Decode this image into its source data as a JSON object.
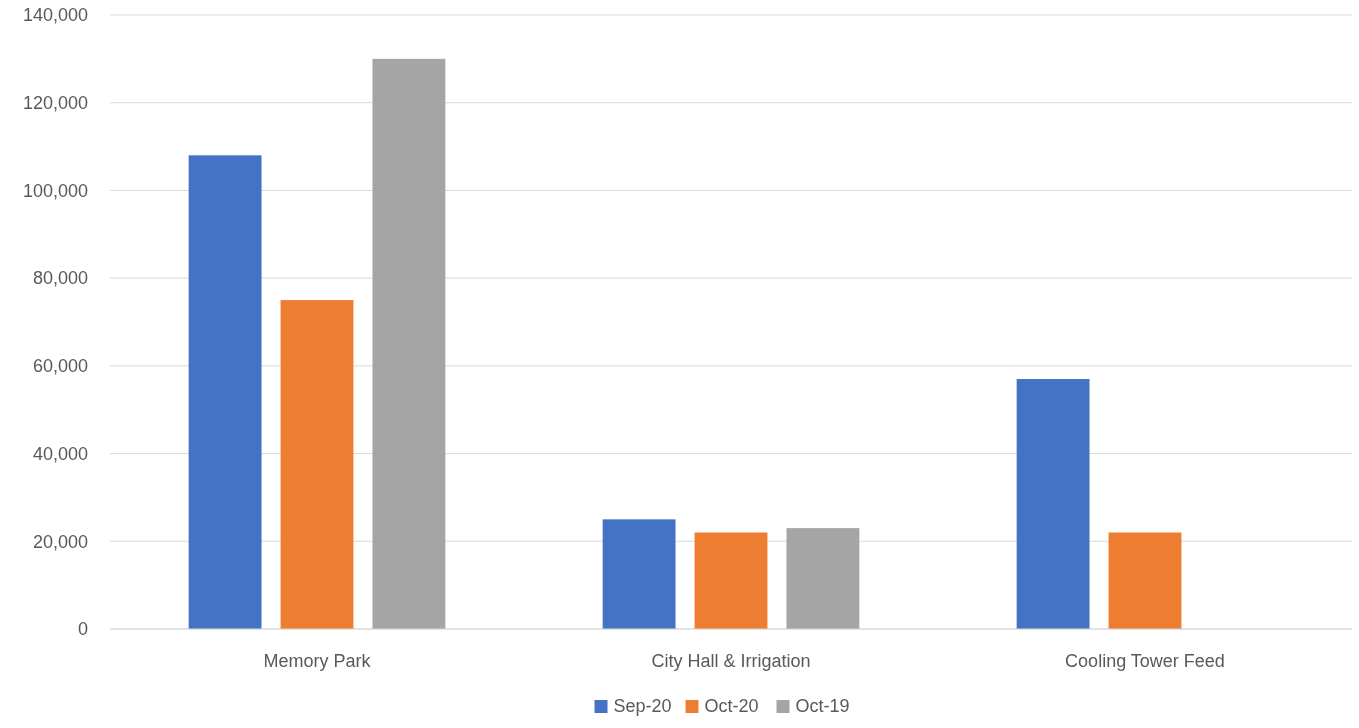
{
  "chart_data": {
    "type": "bar",
    "categories": [
      "Memory Park",
      "City Hall & Irrigation",
      "Cooling Tower Feed"
    ],
    "series": [
      {
        "name": "Sep-20",
        "color": "#4472c4",
        "values": [
          108000,
          25000,
          57000
        ]
      },
      {
        "name": "Oct-20",
        "color": "#ed7d31",
        "values": [
          75000,
          22000,
          22000
        ]
      },
      {
        "name": "Oct-19",
        "color": "#a5a5a5",
        "values": [
          130000,
          23000,
          null
        ]
      }
    ],
    "ylim": [
      0,
      140000
    ],
    "yticks": [
      {
        "value": 0,
        "label": "0"
      },
      {
        "value": 20000,
        "label": "20,000"
      },
      {
        "value": 40000,
        "label": "40,000"
      },
      {
        "value": 60000,
        "label": "60,000"
      },
      {
        "value": 80000,
        "label": "80,000"
      },
      {
        "value": 100000,
        "label": "100,000"
      },
      {
        "value": 120000,
        "label": "120,000"
      },
      {
        "value": 140000,
        "label": "140,000"
      }
    ],
    "grid": "y",
    "legend": "bottom"
  }
}
